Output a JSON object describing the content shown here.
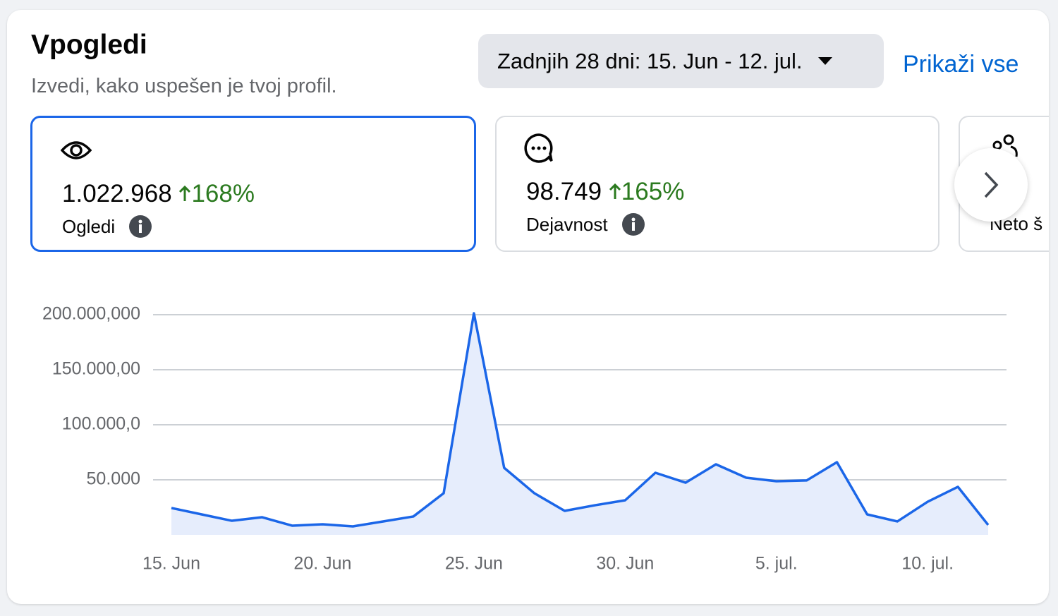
{
  "header": {
    "title": "Vpogledi",
    "subtitle": "Izvedi, kako uspešen je tvoj profil."
  },
  "date_range": "Zadnjih 28 dni: 15. Jun - 12. jul.",
  "show_all": "Prikaži vse",
  "metrics": [
    {
      "value": "1.022.968",
      "change": "168%",
      "label": "Ogledi"
    },
    {
      "value": "98.749",
      "change": "165%",
      "label": "Dejavnost"
    },
    {
      "label": "Neto š"
    }
  ],
  "chart_data": {
    "type": "line",
    "categories": [
      "15. Jun",
      null,
      null,
      null,
      null,
      "20. Jun",
      null,
      null,
      null,
      null,
      "25. Jun",
      null,
      null,
      null,
      null,
      "30. Jun",
      null,
      null,
      null,
      null,
      "5. jul.",
      null,
      null,
      null,
      null,
      "10. jul.",
      null,
      null
    ],
    "series": [
      {
        "color": "#1b66e8",
        "fill": "#e6edfc",
        "values": [
          24400,
          18600,
          12800,
          16000,
          8300,
          9600,
          7700,
          12200,
          16700,
          37800,
          201300,
          60900,
          37800,
          21800,
          26900,
          31400,
          56400,
          47400,
          64100,
          51900,
          48700,
          49400,
          66000,
          18600,
          12200,
          30100,
          43600,
          9000
        ]
      }
    ],
    "ylim": [
      0,
      200000
    ],
    "yticks": [
      {
        "value": 50000,
        "label": "50.000"
      },
      {
        "value": 100000,
        "label": "100.000,0"
      },
      {
        "value": 150000,
        "label": "150.000,00"
      },
      {
        "value": 200000,
        "label": "200.000,000"
      }
    ],
    "grid": true
  }
}
